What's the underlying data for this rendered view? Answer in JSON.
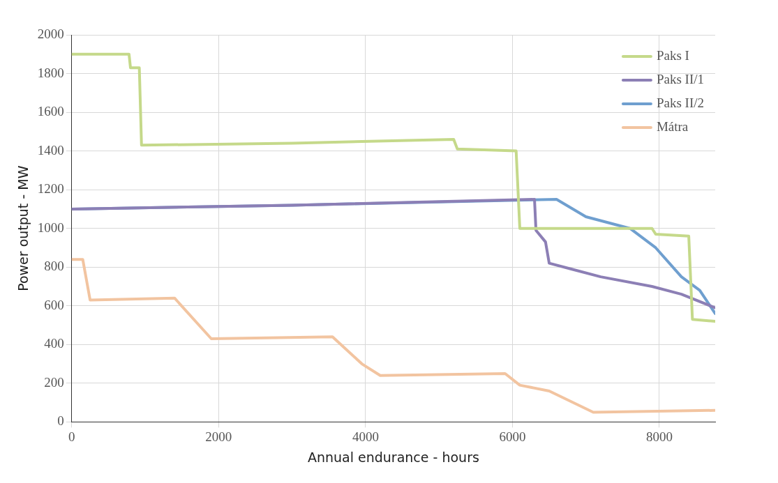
{
  "chart_data": {
    "type": "line",
    "xlabel": "Annual endurance - hours",
    "ylabel": "Power output - MW",
    "xlim": [
      0,
      8760
    ],
    "xticks": [
      0,
      2000,
      4000,
      6000,
      8000
    ],
    "ylim": [
      0,
      2000
    ],
    "yticks": [
      0,
      200,
      400,
      600,
      800,
      1000,
      1200,
      1400,
      1600,
      1800,
      2000
    ],
    "grid": true,
    "legend": "top right",
    "marker": "none",
    "line_style": "solid",
    "series": [
      {
        "name": "Paks I",
        "color": "#c5d98a",
        "x": [
          0,
          780,
          800,
          920,
          950,
          3000,
          5200,
          5250,
          6050,
          6100,
          7900,
          7950,
          8400,
          8450,
          8760
        ],
        "values": [
          1900,
          1900,
          1830,
          1830,
          1430,
          1440,
          1460,
          1410,
          1400,
          1000,
          1000,
          970,
          960,
          530,
          520
        ]
      },
      {
        "name": "Paks II/1",
        "color": "#8c7fb5",
        "x": [
          0,
          3000,
          6300,
          6320,
          6450,
          6500,
          6800,
          7200,
          7900,
          8300,
          8760
        ],
        "values": [
          1100,
          1120,
          1150,
          990,
          930,
          820,
          790,
          750,
          700,
          660,
          590
        ]
      },
      {
        "name": "Paks II/2",
        "color": "#6f9fcf",
        "x": [
          0,
          3000,
          6600,
          7000,
          7600,
          7950,
          8300,
          8550,
          8760
        ],
        "values": [
          1100,
          1120,
          1150,
          1060,
          1000,
          900,
          750,
          680,
          560
        ]
      },
      {
        "name": "Mátra",
        "color": "#f2c4a0",
        "x": [
          0,
          150,
          250,
          1400,
          1900,
          3550,
          3950,
          4200,
          5900,
          6100,
          6500,
          7100,
          8760
        ],
        "values": [
          840,
          840,
          630,
          640,
          430,
          440,
          300,
          240,
          250,
          190,
          160,
          50,
          60
        ]
      }
    ]
  }
}
